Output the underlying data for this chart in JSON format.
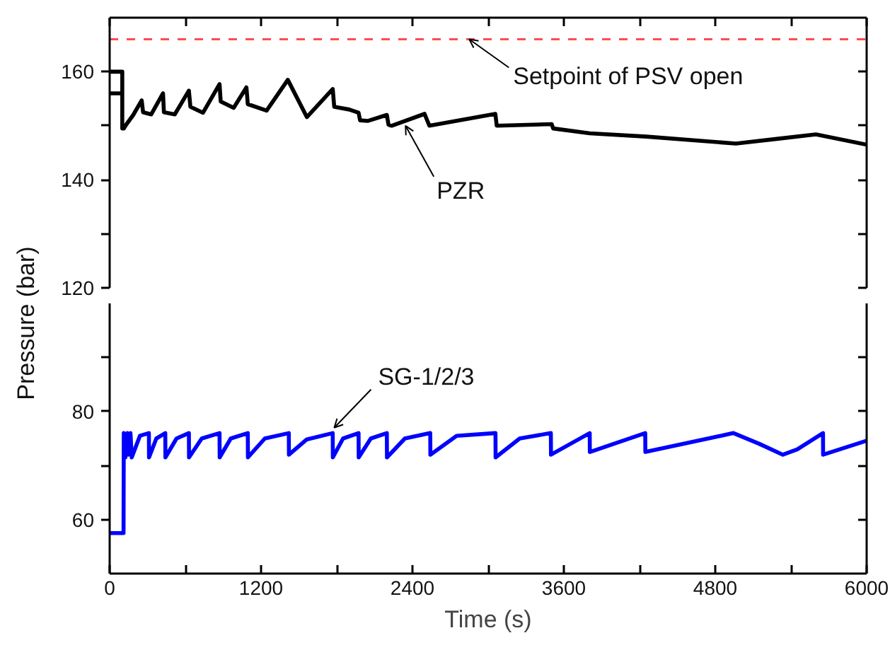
{
  "chart_data": [
    {
      "type": "line",
      "xlim": [
        0,
        6000
      ],
      "xticks": [
        0,
        {
          "value": 600,
          "label": null
        },
        1200,
        {
          "value": 1800,
          "label": null
        },
        2400,
        {
          "value": 3000,
          "label": null
        },
        3600,
        {
          "value": 4200,
          "label": null
        },
        4800,
        {
          "value": 5400,
          "label": null
        },
        6000
      ],
      "ylim": [
        120,
        170
      ],
      "yticks": [
        120,
        {
          "value": 130,
          "label": null
        },
        140,
        {
          "value": 150,
          "label": null
        },
        160
      ],
      "tick_labels": "y",
      "series": [
        {
          "color": "#000000",
          "x": [
            0,
            100,
            100,
            0,
            100,
            100,
            112,
            134,
            187,
            254,
            265,
            329,
            423,
            430,
            516,
            628,
            640,
            740,
            871,
            880,
            983,
            1084,
            1095,
            1244,
            1412,
            1563,
            1768,
            1780,
            1899,
            1973,
            1985,
            2048,
            2197,
            2210,
            2235,
            2496,
            2534,
            3057,
            3068,
            3504,
            3515,
            3805,
            4253,
            4963,
            5300,
            5598,
            6000
          ],
          "values": [
            156,
            156,
            160,
            160,
            160,
            149.5,
            149.5,
            150.3,
            152,
            154.7,
            152.5,
            152.1,
            156,
            152.5,
            152.1,
            156.5,
            153.5,
            152.4,
            157.7,
            154.5,
            153.3,
            157.1,
            154,
            152.8,
            158.5,
            151.6,
            156.8,
            153.5,
            153,
            152.4,
            151,
            150.9,
            152,
            150.2,
            150,
            152.2,
            150,
            152.2,
            150,
            150.3,
            149.5,
            148.6,
            148,
            146.7,
            147.6,
            148.4,
            146.5
          ]
        }
      ],
      "ref_lines": [
        {
          "axis": "y",
          "value": 166,
          "color": "#ff4d4d",
          "line_style": "dashed"
        }
      ],
      "annotations": [
        {
          "text": "Setpoint of PSV open",
          "x": 2850,
          "y": 166
        },
        {
          "text": "PZR",
          "x": 2345,
          "y": 150
        }
      ]
    },
    {
      "type": "line",
      "xlabel": "Time (s)",
      "ylabel": "Pressure (bar)",
      "xlim": [
        0,
        6000
      ],
      "xticks": [
        0,
        {
          "value": 600,
          "label": null
        },
        1200,
        {
          "value": 1800,
          "label": null
        },
        2400,
        {
          "value": 3000,
          "label": null
        },
        3600,
        {
          "value": 4200,
          "label": null
        },
        4800,
        {
          "value": 5400,
          "label": null
        },
        6000
      ],
      "ylim": [
        50,
        100
      ],
      "yticks": [
        60,
        {
          "value": 70,
          "label": null
        },
        80,
        {
          "value": 90,
          "label": null
        }
      ],
      "series": [
        {
          "color": "#0000ff",
          "x": [
            0,
            110,
            112,
            125,
            140,
            150,
            165,
            175,
            240,
            311,
            312,
            370,
            441,
            442,
            530,
            628,
            629,
            730,
            871,
            872,
            960,
            1095,
            1096,
            1230,
            1420,
            1421,
            1560,
            1768,
            1769,
            1850,
            1973,
            1974,
            2070,
            2197,
            2198,
            2340,
            2541,
            2542,
            2750,
            3058,
            3059,
            3250,
            3497,
            3498,
            3805,
            3806,
            4245,
            4246,
            4944,
            5150,
            5336,
            5450,
            5654,
            5655,
            6000
          ],
          "values": [
            57.5,
            57.5,
            76,
            71.5,
            76,
            72,
            76,
            71.5,
            75.5,
            76,
            71.5,
            75,
            76,
            71.5,
            75,
            76,
            71.5,
            75,
            76,
            71.5,
            75,
            76,
            71.5,
            75,
            76,
            72,
            74.8,
            76,
            71.5,
            75,
            76,
            71.5,
            75,
            76,
            71.5,
            75,
            76,
            72,
            75.5,
            76,
            71.5,
            75,
            76,
            72,
            76,
            72.5,
            76,
            72.5,
            76,
            74,
            72,
            73,
            76,
            72,
            74.6
          ]
        }
      ],
      "annotations": [
        {
          "text": "SG-1/2/3",
          "x": 1780,
          "y": 77
        }
      ]
    }
  ]
}
